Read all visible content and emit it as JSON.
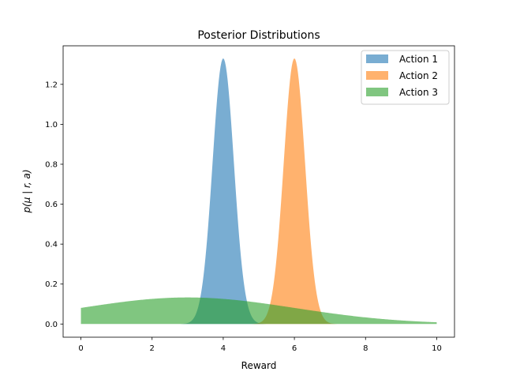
{
  "chart_data": {
    "type": "area",
    "title": "Posterior Distributions",
    "xlabel": "Reward",
    "ylabel": "p(μ | r, a)",
    "xlim": [
      -0.5,
      10.5
    ],
    "ylim": [
      -0.066,
      1.393
    ],
    "xticks": [
      0,
      2,
      4,
      6,
      8,
      10
    ],
    "xtick_labels": [
      "0",
      "2",
      "4",
      "6",
      "8",
      "10"
    ],
    "yticks": [
      0.0,
      0.2,
      0.4,
      0.6,
      0.8,
      1.0,
      1.2
    ],
    "ytick_labels": [
      "0.0",
      "0.2",
      "0.4",
      "0.6",
      "0.8",
      "1.0",
      "1.2"
    ],
    "grid": false,
    "legend_position": "top-right",
    "fill_alpha": 0.6,
    "series": [
      {
        "name": "Action 1",
        "color": "#1f77b4",
        "distribution": "normal",
        "mean": 4.0,
        "sd": 0.3,
        "peak": 1.33
      },
      {
        "name": "Action 2",
        "color": "#ff7f0e",
        "distribution": "normal",
        "mean": 6.0,
        "sd": 0.3,
        "peak": 1.33
      },
      {
        "name": "Action 3",
        "color": "#2ca02c",
        "distribution": "normal",
        "mean": 3.0,
        "sd": 3.0,
        "peak": 0.133
      }
    ],
    "x_domain": [
      0,
      10
    ]
  }
}
